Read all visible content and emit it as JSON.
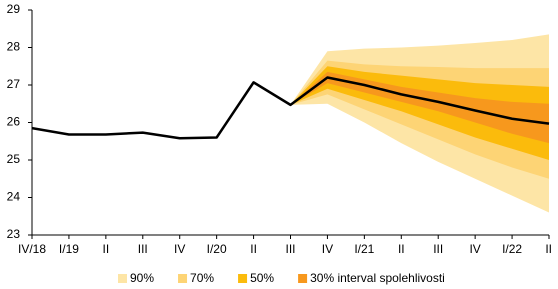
{
  "chart_data": {
    "type": "fan",
    "categories": [
      "IV/18",
      "I/19",
      "II",
      "III",
      "IV",
      "I/20",
      "II",
      "III",
      "IV",
      "I/21",
      "II",
      "III",
      "IV",
      "I/22",
      "II"
    ],
    "ylim": [
      23,
      29
    ],
    "yticks": [
      23,
      24,
      25,
      26,
      27,
      28,
      29
    ],
    "line": {
      "color": "#000000",
      "values": [
        25.85,
        25.68,
        25.68,
        25.73,
        25.58,
        25.6,
        27.07,
        26.47,
        27.2,
        27.0,
        26.75,
        26.55,
        26.32,
        26.1,
        25.97
      ]
    },
    "bands": [
      {
        "name": "90%",
        "color": "#fde5a6",
        "upper": [
          null,
          null,
          null,
          null,
          null,
          null,
          null,
          26.47,
          27.9,
          27.97,
          28.0,
          28.05,
          28.12,
          28.2,
          28.35
        ],
        "lower": [
          null,
          null,
          null,
          null,
          null,
          null,
          null,
          26.47,
          26.5,
          26.0,
          25.45,
          24.95,
          24.5,
          24.05,
          23.6
        ]
      },
      {
        "name": "70%",
        "color": "#fdd475",
        "upper": [
          null,
          null,
          null,
          null,
          null,
          null,
          null,
          26.47,
          27.65,
          27.55,
          27.5,
          27.48,
          27.45,
          27.45,
          27.45
        ],
        "lower": [
          null,
          null,
          null,
          null,
          null,
          null,
          null,
          26.47,
          26.75,
          26.35,
          25.95,
          25.55,
          25.15,
          24.8,
          24.5
        ]
      },
      {
        "name": "50%",
        "color": "#fbbb0c",
        "upper": [
          null,
          null,
          null,
          null,
          null,
          null,
          null,
          26.47,
          27.5,
          27.35,
          27.25,
          27.15,
          27.05,
          27.0,
          26.95
        ],
        "lower": [
          null,
          null,
          null,
          null,
          null,
          null,
          null,
          26.47,
          26.9,
          26.6,
          26.3,
          25.95,
          25.6,
          25.3,
          25.0
        ]
      },
      {
        "name": "30% interval spolehlivosti",
        "color": "#f7981d",
        "upper": [
          null,
          null,
          null,
          null,
          null,
          null,
          null,
          26.47,
          27.35,
          27.15,
          26.95,
          26.8,
          26.65,
          26.55,
          26.5
        ],
        "lower": [
          null,
          null,
          null,
          null,
          null,
          null,
          null,
          26.47,
          27.05,
          26.8,
          26.55,
          26.3,
          26.0,
          25.7,
          25.45
        ]
      }
    ]
  }
}
